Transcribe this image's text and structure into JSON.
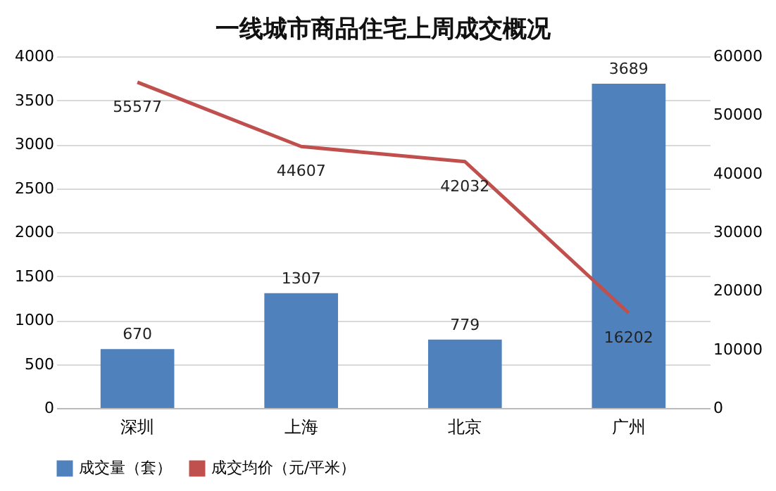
{
  "chart_data": {
    "type": "bar",
    "title": "一线城市商品住宅上周成交概况",
    "categories": [
      "深圳",
      "上海",
      "北京",
      "广州"
    ],
    "series": [
      {
        "name": "成交量（套）",
        "color": "#4f81bd",
        "values": [
          670,
          1307,
          779,
          3689
        ]
      },
      {
        "name": "成交均价（元/平米）",
        "type": "line",
        "axis": "y2",
        "color": "#c0504d",
        "values": [
          55577,
          44607,
          42032,
          16202
        ]
      }
    ],
    "ylim": [
      0,
      4000
    ],
    "yticks": [
      0,
      500,
      1000,
      1500,
      2000,
      2500,
      3000,
      3500,
      4000
    ],
    "y2lim": [
      0,
      60000
    ],
    "y2ticks": [
      0,
      10000,
      20000,
      30000,
      40000,
      50000,
      60000
    ],
    "grid": "y",
    "legend": "bottom",
    "data_labels": true
  }
}
